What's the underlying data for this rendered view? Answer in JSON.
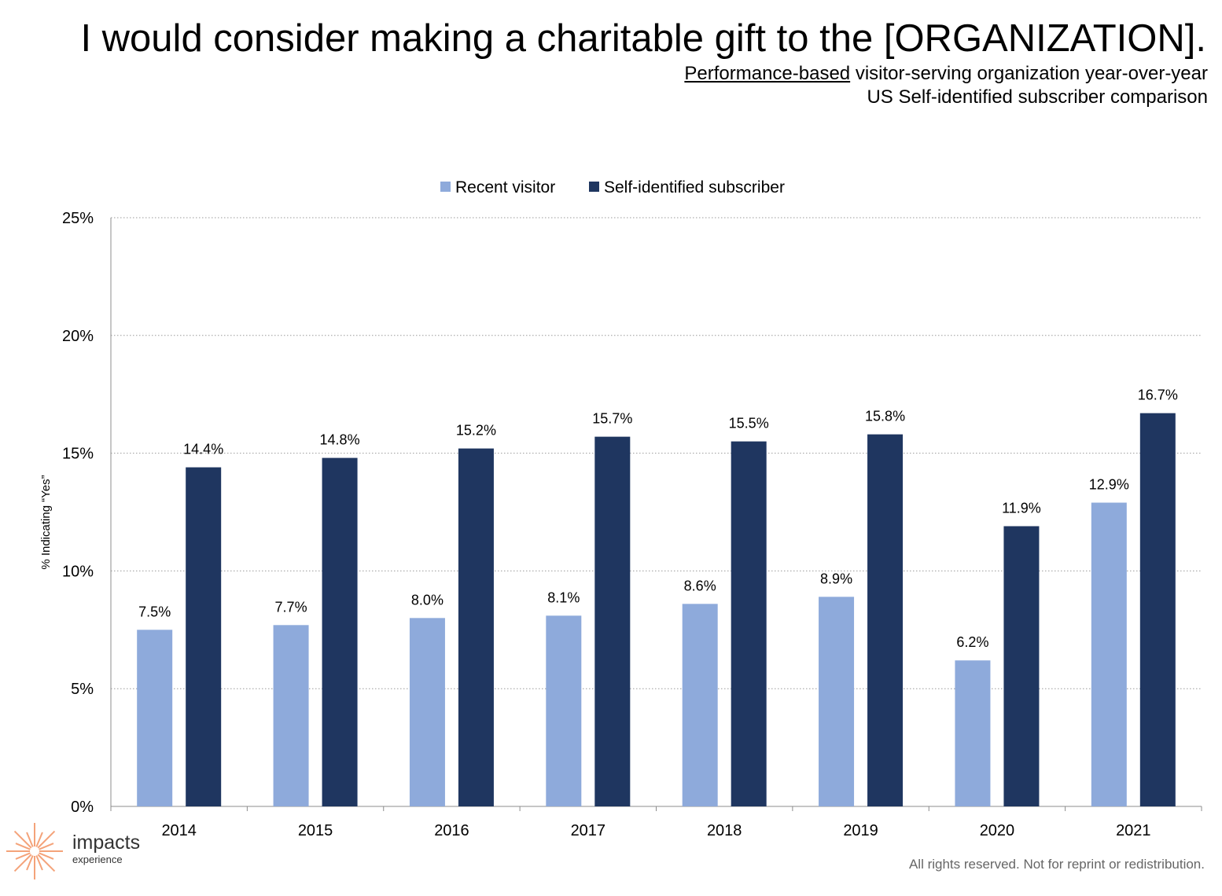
{
  "header": {
    "title": "I would consider making a charitable gift to the [ORGANIZATION].",
    "subtitle_underlined": "Performance-based",
    "subtitle_rest": " visitor-serving organization year-over-year",
    "subtitle_line2": "US Self-identified subscriber comparison"
  },
  "logo": {
    "name": "impacts",
    "tagline": "experience",
    "icon": "sunburst-icon",
    "color": "#f4a37a"
  },
  "footer": {
    "text": "All rights reserved. Not for reprint or redistribution."
  },
  "chart_data": {
    "type": "bar",
    "categories": [
      "2014",
      "2015",
      "2016",
      "2017",
      "2018",
      "2019",
      "2020",
      "2021"
    ],
    "series": [
      {
        "name": "Recent visitor",
        "color": "#8eaadb",
        "values": [
          7.5,
          7.7,
          8.0,
          8.1,
          8.6,
          8.9,
          6.2,
          12.9
        ],
        "labels": [
          "7.5%",
          "7.7%",
          "8.0%",
          "8.1%",
          "8.6%",
          "8.9%",
          "6.2%",
          "12.9%"
        ]
      },
      {
        "name": "Self-identified subscriber",
        "color": "#1f3660",
        "values": [
          14.4,
          14.8,
          15.2,
          15.7,
          15.5,
          15.8,
          11.9,
          16.7
        ],
        "labels": [
          "14.4%",
          "14.8%",
          "15.2%",
          "15.7%",
          "15.5%",
          "15.8%",
          "11.9%",
          "16.7%"
        ]
      }
    ],
    "ylabel": "% Indicating “Yes”",
    "ylim": [
      0,
      25
    ],
    "yticks": [
      0,
      5,
      10,
      15,
      20,
      25
    ],
    "ytick_labels": [
      "0%",
      "5%",
      "10%",
      "15%",
      "20%",
      "25%"
    ],
    "grid": true,
    "legend_position": "top-center"
  }
}
